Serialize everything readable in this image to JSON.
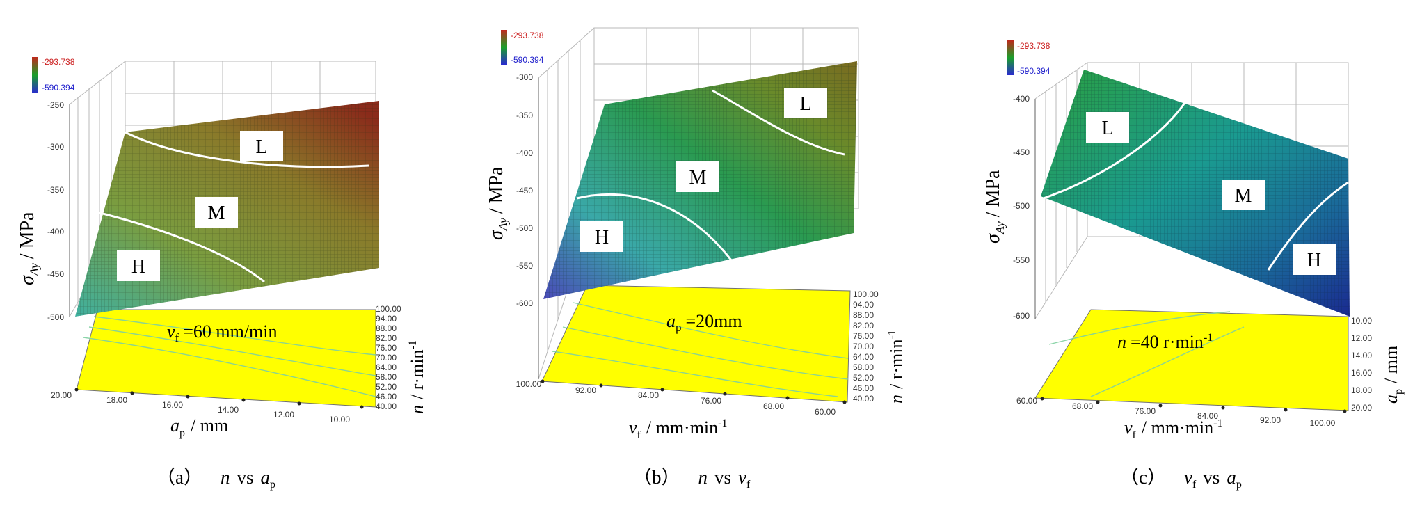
{
  "chart_data": [
    {
      "type": "surface3d",
      "panel_label": "（a）",
      "caption": {
        "a": "n",
        "mid": "vs",
        "b": "a",
        "b_sub": "p"
      },
      "colorbar": {
        "max": "-293.738",
        "min": "-590.394"
      },
      "zlabel": {
        "sym": "σ",
        "sub": "Ay",
        "unit": "/ MPa"
      },
      "z_ticks": [
        "-250",
        "-300",
        "-350",
        "-400",
        "-450",
        "-500"
      ],
      "xlabel": {
        "sym": "a",
        "sub": "p",
        "unit": "/ mm"
      },
      "x_ticks": [
        "20.00",
        "18.00",
        "16.00",
        "14.00",
        "12.00",
        "10.00"
      ],
      "ylabel": {
        "sym": "n",
        "unit": "/ r·min",
        "sup": "-1"
      },
      "y_ticks": [
        "40.00",
        "46.00",
        "52.00",
        "58.00",
        "64.00",
        "70.00",
        "76.00",
        "82.00",
        "88.00",
        "94.00",
        "100.00"
      ],
      "fixed": {
        "sym": "v",
        "sub": "f",
        "text": "=60 mm/min"
      },
      "regions": [
        "L",
        "M",
        "H"
      ]
    },
    {
      "type": "surface3d",
      "panel_label": "（b）",
      "caption": {
        "a": "n",
        "mid": "vs",
        "b": "v",
        "b_sub": "f"
      },
      "colorbar": {
        "max": "-293.738",
        "min": "-590.394"
      },
      "zlabel": {
        "sym": "σ",
        "sub": "Ay",
        "unit": "/ MPa"
      },
      "z_ticks": [
        "-300",
        "-350",
        "-400",
        "-450",
        "-500",
        "-550",
        "-600"
      ],
      "xlabel": {
        "sym": "v",
        "sub": "f",
        "unit": "/ mm·min",
        "sup": "-1"
      },
      "x_ticks": [
        "100.00",
        "92.00",
        "84.00",
        "76.00",
        "68.00",
        "60.00"
      ],
      "ylabel": {
        "sym": "n",
        "unit": "/ r·min",
        "sup": "-1"
      },
      "y_ticks": [
        "40.00",
        "46.00",
        "52.00",
        "58.00",
        "64.00",
        "70.00",
        "76.00",
        "82.00",
        "88.00",
        "94.00",
        "100.00"
      ],
      "fixed": {
        "sym": "a",
        "sub": "p",
        "text": "=20mm"
      },
      "regions": [
        "L",
        "M",
        "H"
      ]
    },
    {
      "type": "surface3d",
      "panel_label": "（c）",
      "caption": {
        "a": "v",
        "a_sub": "f",
        "mid": "vs",
        "b": "a",
        "b_sub": "p"
      },
      "colorbar": {
        "max": "-293.738",
        "min": "-590.394"
      },
      "zlabel": {
        "sym": "σ",
        "sub": "Ay",
        "unit": "/ MPa"
      },
      "z_ticks": [
        "-400",
        "-450",
        "-500",
        "-550",
        "-600"
      ],
      "xlabel": {
        "sym": "v",
        "sub": "f",
        "unit": "/ mm·min",
        "sup": "-1"
      },
      "x_ticks": [
        "60.00",
        "68.00",
        "76.00",
        "84.00",
        "92.00",
        "100.00"
      ],
      "ylabel": {
        "sym": "a",
        "sub": "p",
        "unit": "/ mm"
      },
      "y_ticks": [
        "10.00",
        "12.00",
        "14.00",
        "16.00",
        "18.00",
        "20.00"
      ],
      "fixed": {
        "sym": "n",
        "text": "=40 r·min",
        "sup": "-1"
      },
      "regions": [
        "L",
        "M",
        "H"
      ]
    }
  ]
}
